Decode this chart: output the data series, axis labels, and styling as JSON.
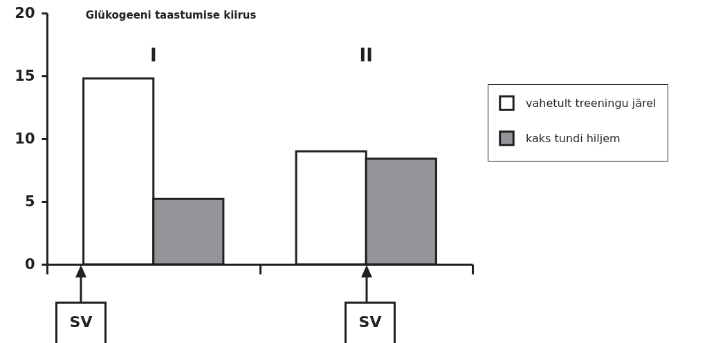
{
  "chart_data": {
    "type": "bar",
    "title": "Glükogeeni taastumise kiirus",
    "categories": [
      "I",
      "II"
    ],
    "series": [
      {
        "name": "vahetult treeningu järel",
        "color": "#ffffff",
        "values": [
          14.8,
          9
        ]
      },
      {
        "name": "kaks tundi hiljem",
        "color": "#939598",
        "values": [
          5.2,
          8.4
        ]
      }
    ],
    "ylim": [
      0,
      20
    ],
    "yticks": [
      0,
      5,
      10,
      15,
      20
    ],
    "grid": false,
    "legend": "right",
    "annotations": [
      "SV",
      "SV"
    ]
  }
}
